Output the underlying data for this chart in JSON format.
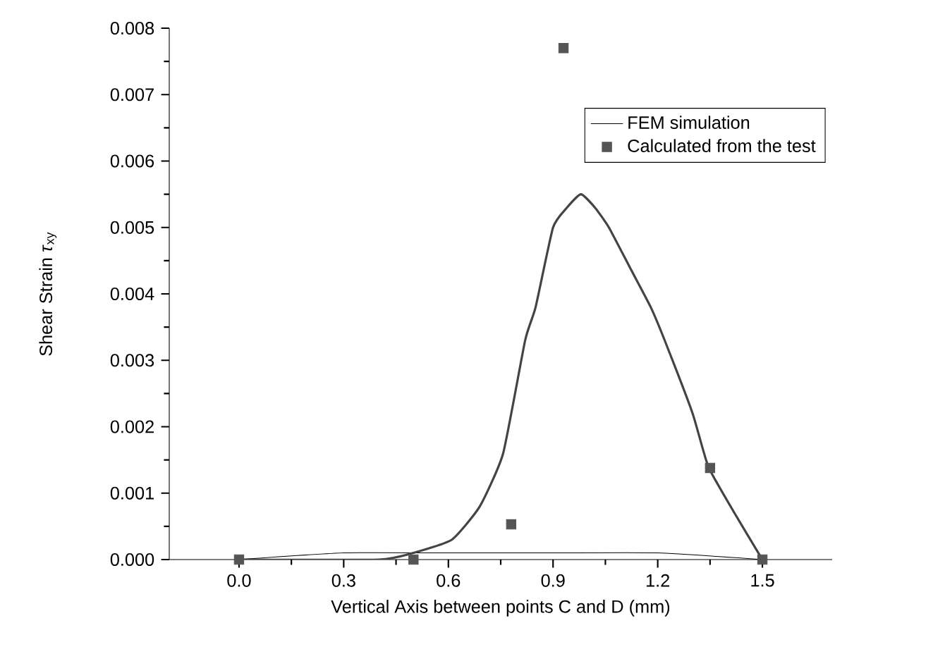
{
  "chart_data": {
    "type": "line",
    "xlabel": "Vertical Axis between points C and D (mm)",
    "ylabel": "Shear Strain *τ*$_{xy}$",
    "xlim": [
      -0.2,
      1.7
    ],
    "ylim": [
      0,
      0.008
    ],
    "xticks": [
      {
        "value": 0,
        "label": "0.0"
      },
      0.3,
      0.6,
      0.9,
      1.2,
      1.5
    ],
    "yticks": [
      {
        "value": 0,
        "label": "0.000"
      },
      0.001,
      0.002,
      0.003,
      0.004,
      0.005,
      0.006,
      0.007,
      0.008
    ],
    "grid": false,
    "legend": "top right",
    "series": [
      {
        "name": "FEM simulation",
        "color": "#000000",
        "marker": "none",
        "x": [
          0,
          0.3,
          0.6,
          0.9,
          1.2,
          1.5
        ],
        "values": [
          0,
          0.0001,
          0.0001,
          0.0001,
          0.0001,
          0
        ]
      },
      {
        "name": "Calculated from the test",
        "type": "scatter",
        "color": "#555555",
        "marker": "square",
        "x": [
          0,
          0.5,
          0.78,
          0.93,
          1.35,
          1.5
        ],
        "values": [
          0,
          0,
          0.00053,
          0.0077,
          0.00138,
          0
        ]
      },
      {
        "color": "#444444",
        "marker": "none",
        "x": [
          0,
          0.4,
          0.5,
          0.61,
          0.69,
          0.757,
          0.82,
          0.85,
          0.9,
          0.94,
          0.98,
          1.02,
          1.06,
          1.12,
          1.18,
          1.22,
          1.3,
          1.345,
          1.42,
          1.5
        ],
        "values": [
          0,
          0,
          0.0001,
          0.0003,
          0.0008,
          0.0016,
          0.0033,
          0.0038,
          0.005,
          0.0053,
          0.0055,
          0.0053,
          0.005,
          0.0044,
          0.0038,
          0.0033,
          0.0022,
          0.0014,
          0.0007,
          0
        ]
      }
    ]
  }
}
